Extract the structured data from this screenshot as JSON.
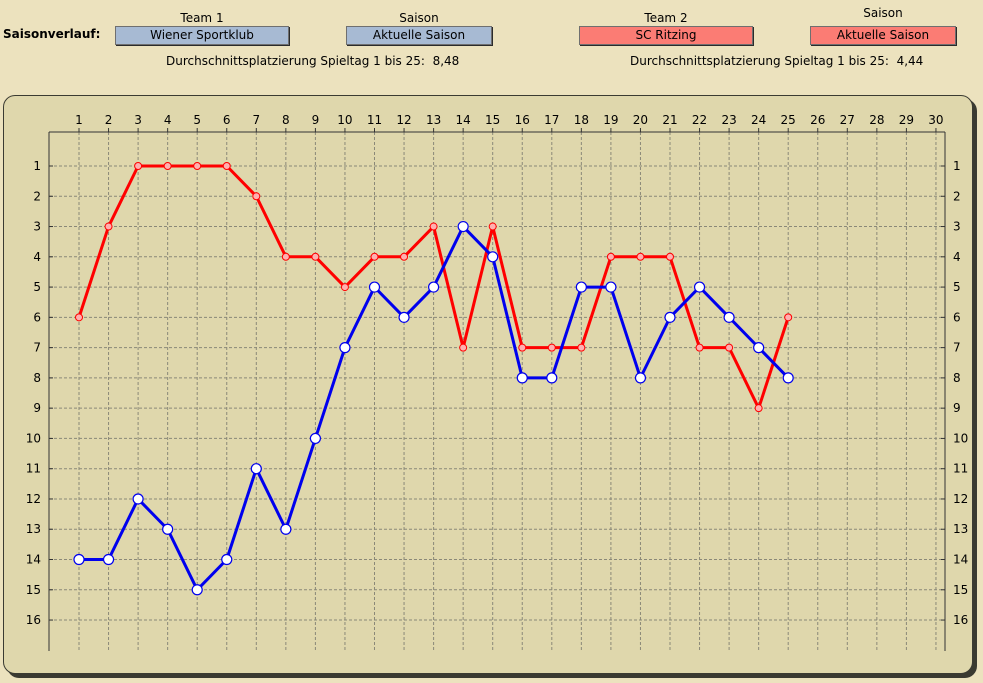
{
  "header": {
    "section_label": "Saisonverlauf:",
    "team1": {
      "heading": "Team 1",
      "name": "Wiener Sportklub"
    },
    "season1": {
      "heading": "Saison",
      "value": "Aktuelle Saison"
    },
    "team2": {
      "heading": "Team 2",
      "name": "SC Ritzing"
    },
    "season2": {
      "heading": "Saison",
      "value": "Aktuelle Saison"
    },
    "avg1": {
      "label": "Durchschnittsplatzierung Spieltag 1 bis 25:",
      "value": "8,48"
    },
    "avg2": {
      "label": "Durchschnittsplatzierung Spieltag 1 bis 25:",
      "value": "4,44"
    }
  },
  "chart_data": {
    "type": "line",
    "x_ticks": [
      1,
      2,
      3,
      4,
      5,
      6,
      7,
      8,
      9,
      10,
      11,
      12,
      13,
      14,
      15,
      16,
      17,
      18,
      19,
      20,
      21,
      22,
      23,
      24,
      25,
      26,
      27,
      28,
      29,
      30
    ],
    "y_ticks": [
      1,
      2,
      3,
      4,
      5,
      6,
      7,
      8,
      9,
      10,
      11,
      12,
      13,
      14,
      15,
      16
    ],
    "xlim": [
      1,
      30
    ],
    "ylim": [
      1,
      16
    ],
    "y_inverted": true,
    "grid": true,
    "series": [
      {
        "name": "Wiener Sportklub",
        "color": "#0000ee",
        "marker": "large-white-circle",
        "x": [
          1,
          2,
          3,
          4,
          5,
          6,
          7,
          8,
          9,
          10,
          11,
          12,
          13,
          14,
          15,
          16,
          17,
          18,
          19,
          20,
          21,
          22,
          23,
          24,
          25
        ],
        "values": [
          14,
          14,
          12,
          13,
          15,
          14,
          11,
          13,
          10,
          7,
          5,
          6,
          5,
          3,
          4,
          8,
          8,
          5,
          5,
          8,
          6,
          5,
          6,
          7,
          8
        ]
      },
      {
        "name": "SC Ritzing",
        "color": "#ff0000",
        "marker": "small-pink-circle",
        "x": [
          1,
          2,
          3,
          4,
          5,
          6,
          7,
          8,
          9,
          10,
          11,
          12,
          13,
          14,
          15,
          16,
          17,
          18,
          19,
          20,
          21,
          22,
          23,
          24,
          25
        ],
        "values": [
          6,
          3,
          1,
          1,
          1,
          1,
          2,
          4,
          4,
          5,
          4,
          4,
          3,
          7,
          3,
          7,
          7,
          7,
          4,
          4,
          4,
          7,
          7,
          9,
          6
        ]
      }
    ]
  }
}
